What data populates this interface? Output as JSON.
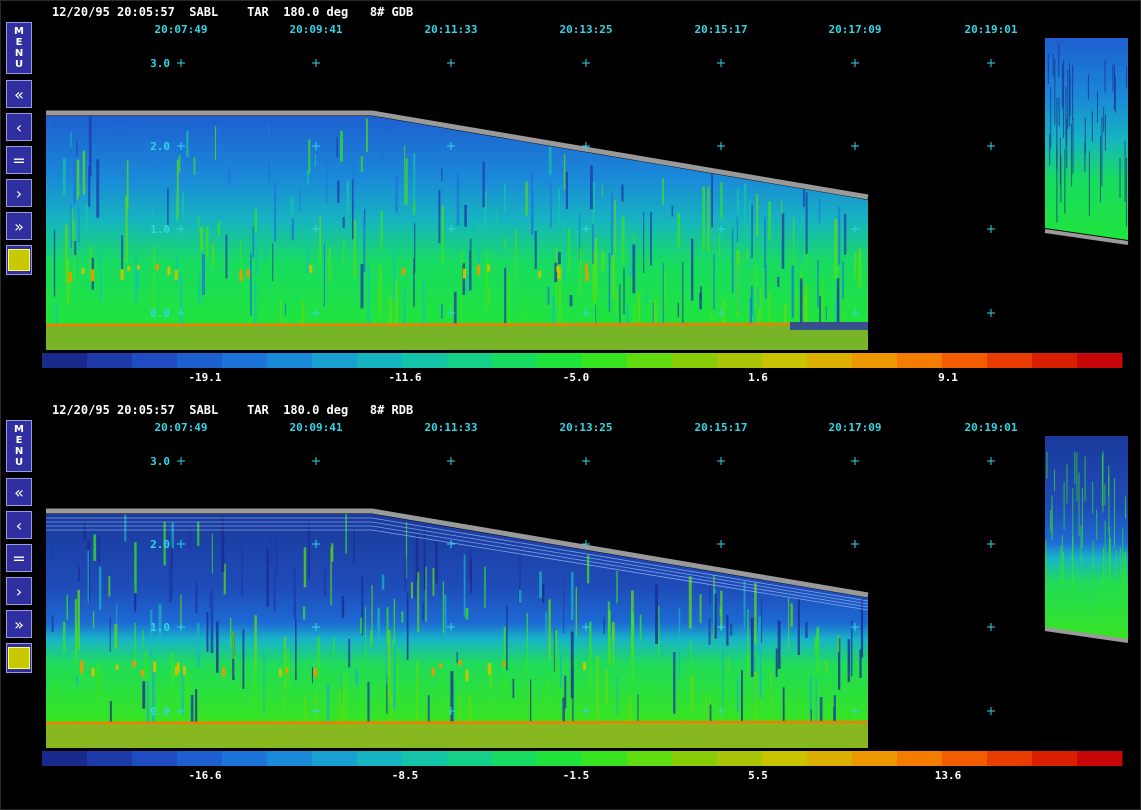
{
  "panels": [
    {
      "header": "12/20/95 20:05:57  SABL    TAR  180.0 deg   8# GDB",
      "time_labels": [
        "20:07:49",
        "20:09:41",
        "20:11:33",
        "20:13:25",
        "20:15:17",
        "20:17:09",
        "20:19:01"
      ],
      "height_labels": [
        "3.0",
        "2.0",
        "1.0",
        "0.0"
      ],
      "colorbar_labels": [
        "-19.1",
        "-11.6",
        "-5.0",
        "1.6",
        "9.1"
      ]
    },
    {
      "header": "12/20/95 20:05:57  SABL    TAR  180.0 deg   8# RDB",
      "time_labels": [
        "20:07:49",
        "20:09:41",
        "20:11:33",
        "20:13:25",
        "20:15:17",
        "20:17:09",
        "20:19:01"
      ],
      "height_labels": [
        "3.0",
        "2.0",
        "1.0",
        "0.0"
      ],
      "colorbar_labels": [
        "-16.6",
        "-8.5",
        "-1.5",
        "5.5",
        "13.6"
      ]
    }
  ],
  "toolbar": {
    "menu_label": "MENU",
    "buttons": [
      {
        "name": "rewind-fast-button",
        "icon": "double-chevron-left-icon",
        "glyph": "«"
      },
      {
        "name": "step-back-button",
        "icon": "chevron-left-icon",
        "glyph": "‹"
      },
      {
        "name": "pause-button",
        "icon": "equals-icon",
        "glyph": "="
      },
      {
        "name": "step-forward-button",
        "icon": "chevron-right-icon",
        "glyph": "›"
      },
      {
        "name": "forward-fast-button",
        "icon": "double-chevron-right-icon",
        "glyph": "»"
      }
    ]
  },
  "colors": {
    "label_cyan": "#33d6e6",
    "colorbar": [
      "#1a2a8c",
      "#1e3aa8",
      "#1f4cc0",
      "#1e5fd0",
      "#1d74d8",
      "#1a8ad8",
      "#18a0d0",
      "#16b4c0",
      "#14c4a8",
      "#14d088",
      "#18dc60",
      "#20e43c",
      "#38e420",
      "#60dc10",
      "#88cc08",
      "#aac408",
      "#c8c400",
      "#dcb000",
      "#ec9800",
      "#f47c00",
      "#f45c00",
      "#e83c00",
      "#d82000",
      "#c80808"
    ]
  }
}
